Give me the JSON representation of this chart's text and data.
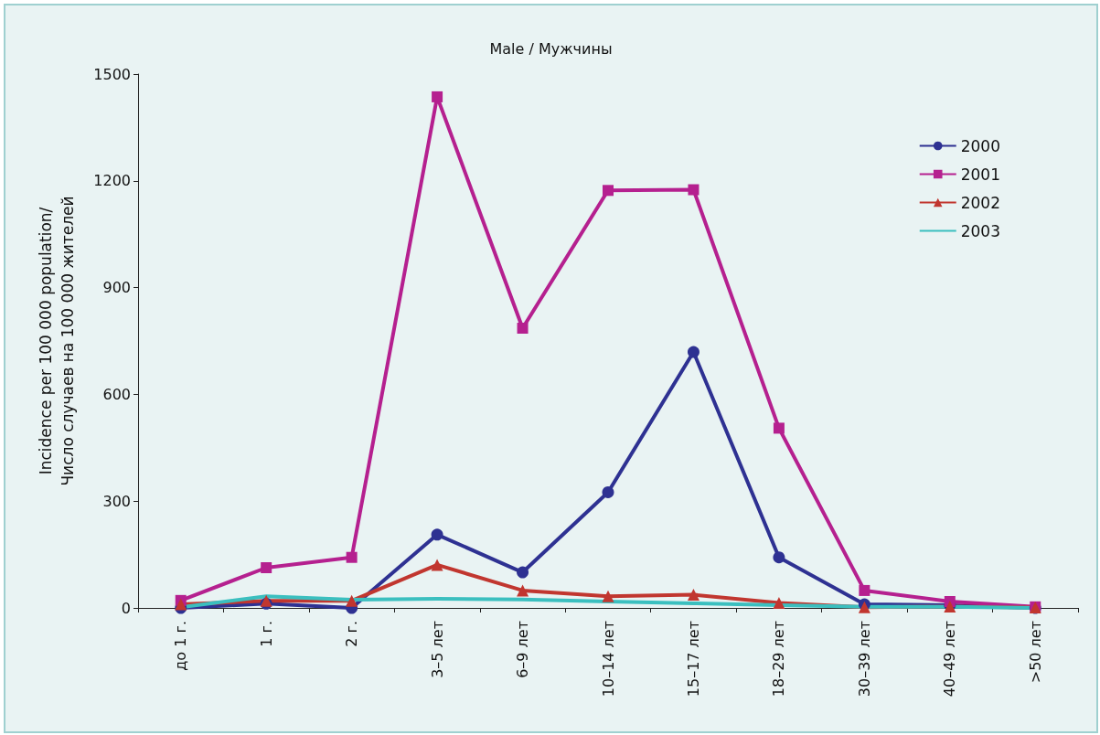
{
  "chart_data": {
    "type": "line",
    "title": "Male / Мужчины",
    "ylabel": "Incidence per 100 000 population/\nЧисло случаев на 100 000 жителей",
    "categories": [
      "до 1 г.",
      "1 г.",
      "2 г.",
      "3–5 лет",
      "6–9 лет",
      "10–14 лет",
      "15–17 лет",
      "18–29 лет",
      "30–39 лет",
      "40–49 лет",
      ">50 лет"
    ],
    "series": [
      {
        "name": "2000",
        "color": "#2e3192",
        "marker": "circle",
        "values": [
          0,
          12,
          0,
          206,
          100,
          325,
          719,
          142,
          10,
          8,
          0
        ]
      },
      {
        "name": "2001",
        "color": "#b5208f",
        "marker": "square",
        "values": [
          21,
          113,
          142,
          1436,
          786,
          1173,
          1175,
          505,
          49,
          18,
          3
        ]
      },
      {
        "name": "2002",
        "color": "#c1362f",
        "marker": "triangle",
        "values": [
          10,
          20,
          20,
          121,
          49,
          33,
          37,
          14,
          2,
          4,
          1
        ]
      },
      {
        "name": "2003",
        "color": "#3bbfbf",
        "marker": "none",
        "values": [
          2,
          33,
          23,
          26,
          24,
          18,
          13,
          8,
          3,
          3,
          0
        ]
      }
    ],
    "ylim": [
      0,
      1500
    ],
    "yticks": [
      0,
      300,
      600,
      900,
      1200,
      1500
    ],
    "grid": false,
    "legend": "top right"
  }
}
